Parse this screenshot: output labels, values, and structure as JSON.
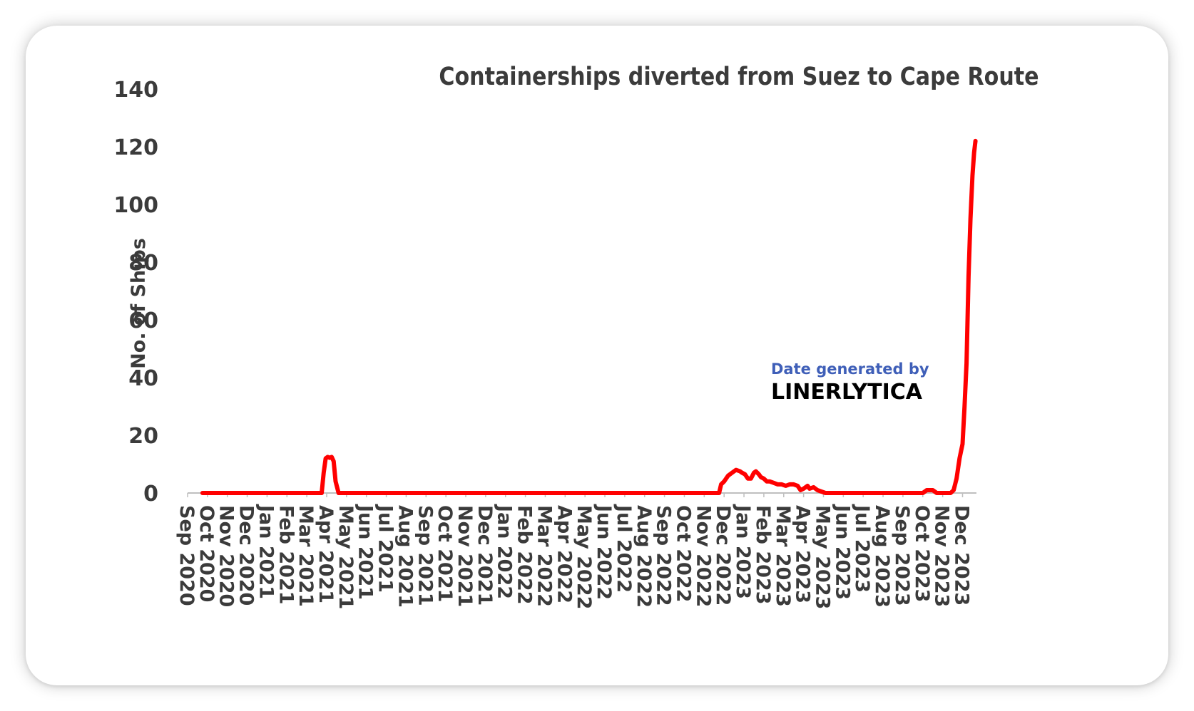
{
  "chart_data": {
    "type": "line",
    "title": "Containerships diverted from Suez to Cape Route",
    "xlabel": "",
    "ylabel": "No. of Ships",
    "ylim": [
      0,
      140
    ],
    "yticks": [
      0,
      20,
      40,
      60,
      80,
      100,
      120,
      140
    ],
    "grid": false,
    "line_color": "#ff0000",
    "axis_color": "#bfbfbf",
    "text_color": "#3b3b3b",
    "categories": [
      "Sep 2020",
      "Oct 2020",
      "Nov 2020",
      "Dec 2020",
      "Jan 2021",
      "Feb 2021",
      "Mar 2021",
      "Apr 2021",
      "May 2021",
      "Jun 2021",
      "Jul 2021",
      "Aug 2021",
      "Sep 2021",
      "Oct 2021",
      "Nov 2021",
      "Dec 2021",
      "Jan 2022",
      "Feb 2022",
      "Mar 2022",
      "Apr 2022",
      "May 2022",
      "Jun 2022",
      "Jul 2022",
      "Aug 2022",
      "Sep 2022",
      "Oct 2022",
      "Nov 2022",
      "Dec 2022",
      "Jan 2023",
      "Feb 2023",
      "Mar 2023",
      "Apr 2023",
      "May 2023",
      "Jun 2023",
      "Jul 2023",
      "Aug 2023",
      "Sep 2023",
      "Oct 2023",
      "Nov 2023",
      "Dec 2023"
    ],
    "x_range": [
      0,
      39.7
    ],
    "series": [
      {
        "name": "No. of Ships",
        "x": [
          0.75,
          6.75,
          6.85,
          6.95,
          7.05,
          7.15,
          7.25,
          7.35,
          7.45,
          7.6,
          26.75,
          26.85,
          27.0,
          27.2,
          27.4,
          27.6,
          27.8,
          27.9,
          28.05,
          28.2,
          28.35,
          28.5,
          28.6,
          28.75,
          28.85,
          29.0,
          29.15,
          29.3,
          29.5,
          29.7,
          29.9,
          30.1,
          30.3,
          30.5,
          30.7,
          30.85,
          31.0,
          31.2,
          31.3,
          31.5,
          31.7,
          31.9,
          32.1,
          32.3,
          32.45,
          32.6,
          32.8,
          37.0,
          37.2,
          37.5,
          37.7,
          38.4,
          38.55,
          38.7,
          38.85,
          39.0,
          39.1,
          39.2,
          39.3,
          39.4,
          39.5,
          39.58,
          39.65
        ],
        "values": [
          0,
          0,
          7,
          12,
          12.5,
          12.2,
          12.5,
          11,
          4,
          0,
          0,
          3,
          4,
          6,
          7,
          8,
          7.5,
          7,
          6.5,
          5,
          5,
          7,
          7.5,
          6.5,
          5.5,
          5,
          4,
          4,
          3.5,
          3,
          3,
          2.5,
          3,
          3,
          2.5,
          1,
          1.5,
          2.5,
          1.5,
          2,
          1,
          0.5,
          0,
          0,
          0,
          0,
          0,
          0,
          1,
          1,
          0,
          0,
          1,
          5,
          12,
          17,
          30,
          45,
          75,
          95,
          110,
          118,
          122
        ]
      }
    ],
    "annotation": {
      "line1": "Date generated by",
      "line2": "LINERLYTICA",
      "line1_color": "#3f5fb8"
    }
  }
}
